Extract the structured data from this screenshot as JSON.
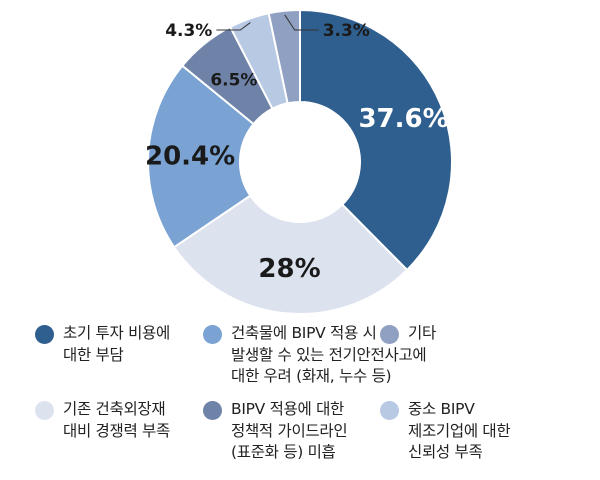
{
  "chart_data": {
    "type": "pie",
    "donut": true,
    "labels": [
      "초기 투자 비용에\n대한 부담",
      "기존 건축외장재\n대비 경쟁력 부족",
      "건축물에 BIPV 적용 시\n발생할 수 있는 전기안전사고에\n대한 우려 (화재, 누수 등)",
      "BIPV 적용에 대한\n정책적 가이드라인\n(표준화 등) 미흡",
      "중소 BIPV\n제조기업에 대한\n신뢰성 부족",
      "기타"
    ],
    "values": [
      37.6,
      28,
      20.4,
      6.5,
      4.3,
      3.3
    ],
    "value_labels": [
      "37.6%",
      "28%",
      "20.4%",
      "6.5%",
      "4.3%",
      "3.3%"
    ],
    "colors": [
      "#2f5f8f",
      "#dde3ee",
      "#7aa3d4",
      "#6f83a8",
      "#b8c9e4",
      "#8fa0c2"
    ],
    "label_colors": [
      "#ffffff",
      "#1a1a1a",
      "#1a1a1a",
      "#1a1a1a",
      "#1a1a1a",
      "#1a1a1a"
    ],
    "legend_order": [
      0,
      2,
      5,
      1,
      3,
      4
    ],
    "legend_placement": "bottom"
  }
}
